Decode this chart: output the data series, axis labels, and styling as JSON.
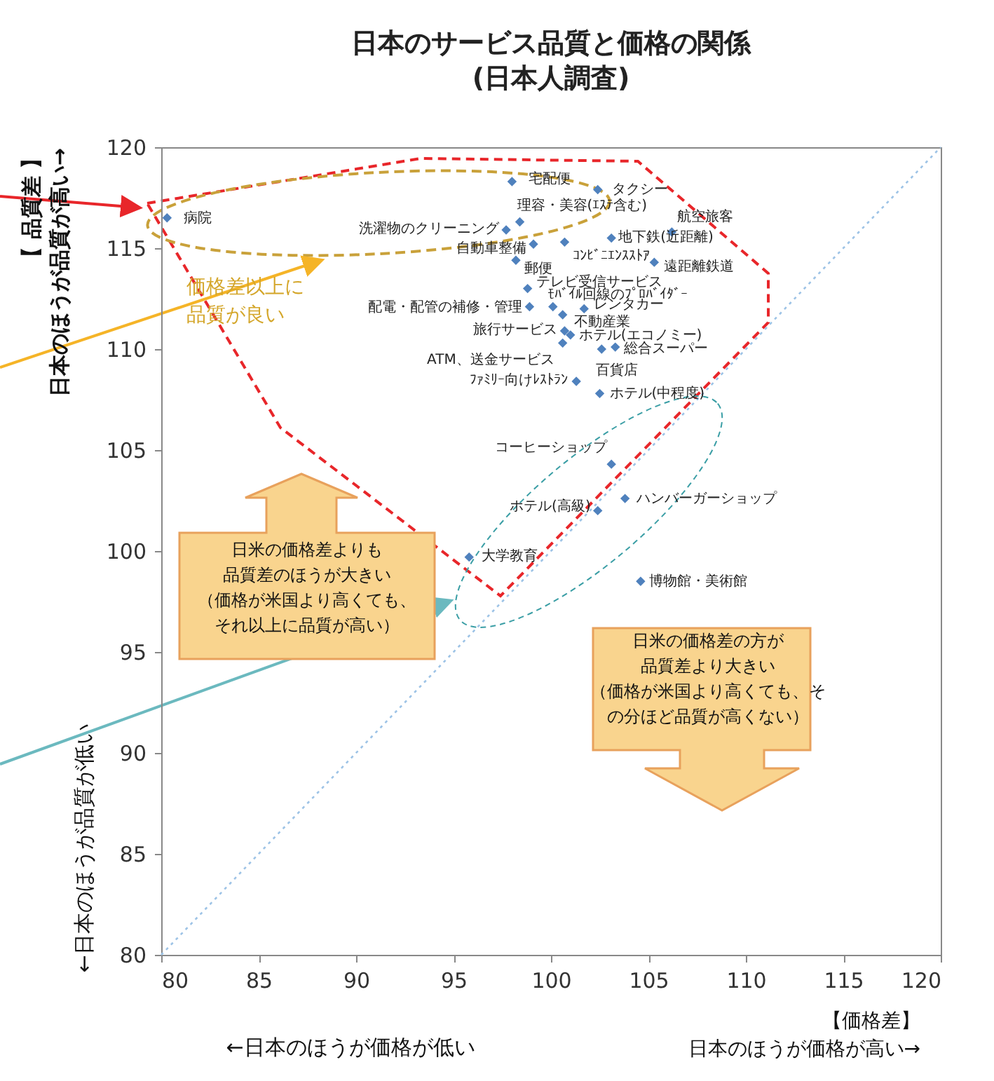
{
  "chart_data": {
    "type": "scatter",
    "title": "日本のサービス品質と価格の関係",
    "subtitle": "(日本人調査)",
    "xlabel": "【価格差】日本のほうが価格が高い→",
    "ylabel": "【 品質差 】日本のほうが品質が高い→",
    "xlim": [
      80,
      120
    ],
    "xticks": [
      80,
      85,
      90,
      95,
      100,
      105,
      110,
      115,
      120
    ],
    "ylim": [
      80,
      120
    ],
    "yticks": [
      80,
      85,
      90,
      95,
      100,
      105,
      110,
      115,
      120
    ],
    "grid": false,
    "series": [
      {
        "color": "#4f81bd",
        "marker": "diamond",
        "x": [
          80.3,
          98.0,
          102.4,
          98.4,
          97.7,
          99.1,
          100.7,
          103.1,
          106.2,
          98.2,
          105.3,
          98.8,
          98.9,
          100.1,
          101.7,
          100.6,
          100.7,
          101.0,
          100.6,
          103.3,
          102.6,
          101.3,
          102.5,
          103.1,
          103.8,
          102.4,
          95.8,
          104.6
        ],
        "values": [
          116.5,
          118.3,
          117.9,
          116.3,
          115.9,
          115.2,
          115.3,
          115.5,
          115.8,
          114.4,
          114.3,
          113.0,
          112.1,
          112.1,
          112.0,
          111.7,
          110.9,
          110.7,
          110.3,
          110.1,
          110.0,
          108.4,
          107.8,
          104.3,
          102.6,
          102.0,
          99.7,
          98.5
        ]
      },
      {
        "type": "line",
        "color": "#9dc3e6",
        "line_style": "dotted",
        "x": [
          80,
          120
        ],
        "values": [
          80,
          120
        ]
      }
    ],
    "annotations": [
      {
        "text": "病院",
        "x": 80.3,
        "y": 116.5
      },
      {
        "text": "宅配便",
        "x": 98.0,
        "y": 118.3
      },
      {
        "text": "タクシー",
        "x": 102.4,
        "y": 117.9
      },
      {
        "text": "理容・美容(ｴｽﾃ含む)",
        "x": 98.4,
        "y": 116.3
      },
      {
        "text": "洗濯物のクリーニング",
        "x": 97.7,
        "y": 115.9
      },
      {
        "text": "自動車整備",
        "x": 99.1,
        "y": 115.2
      },
      {
        "text": "ｺﾝﾋﾞﾆｴﾝｽｽﾄｱ",
        "x": 100.7,
        "y": 115.3
      },
      {
        "text": "地下鉄(近距離)",
        "x": 103.1,
        "y": 115.5
      },
      {
        "text": "航空旅客",
        "x": 106.2,
        "y": 115.8
      },
      {
        "text": "郵便",
        "x": 98.2,
        "y": 114.4
      },
      {
        "text": "遠距離鉄道",
        "x": 105.3,
        "y": 114.3
      },
      {
        "text": "テレビ受信サービス",
        "x": 98.8,
        "y": 113.0
      },
      {
        "text": "配電・配管の補修・管理",
        "x": 98.9,
        "y": 112.1
      },
      {
        "text": "ﾓﾊﾞｲﾙ回線のﾌﾟﾛﾊﾞｲﾀﾞｰ",
        "x": 100.1,
        "y": 112.1
      },
      {
        "text": "レンタカー",
        "x": 101.7,
        "y": 112.0
      },
      {
        "text": "不動産業",
        "x": 100.6,
        "y": 111.7
      },
      {
        "text": "旅行サービス",
        "x": 100.7,
        "y": 110.9
      },
      {
        "text": "ホテル(エコノミー)",
        "x": 101.0,
        "y": 110.7
      },
      {
        "text": "ATM、送金サービス",
        "x": 100.6,
        "y": 110.3
      },
      {
        "text": "総合スーパー",
        "x": 103.3,
        "y": 110.1
      },
      {
        "text": "百貨店",
        "x": 102.6,
        "y": 110.0
      },
      {
        "text": "ﾌｧﾐﾘｰ向けﾚｽﾄﾗﾝ",
        "x": 101.3,
        "y": 108.4
      },
      {
        "text": "ホテル(中程度)",
        "x": 102.5,
        "y": 107.8
      },
      {
        "text": "コーヒーショップ",
        "x": 103.1,
        "y": 104.3
      },
      {
        "text": "ハンバーガーショップ",
        "x": 103.8,
        "y": 102.6
      },
      {
        "text": "ホテル(高級)",
        "x": 102.4,
        "y": 102.0
      },
      {
        "text": "大学教育",
        "x": 95.8,
        "y": 99.7
      },
      {
        "text": "博物館・美術館",
        "x": 104.6,
        "y": 98.5
      },
      "価格差以上に品質が良い",
      "日米の価格差よりも品質差のほうが大きい（価格が米国より高くても、それ以上に品質が高い）",
      "日米の価格差の方が品質差より大きい（価格が米国より高くても、その分ほど品質が高くない）",
      "←日本のほうが価格が低い",
      "←日本のほうが品質が低い"
    ]
  }
}
